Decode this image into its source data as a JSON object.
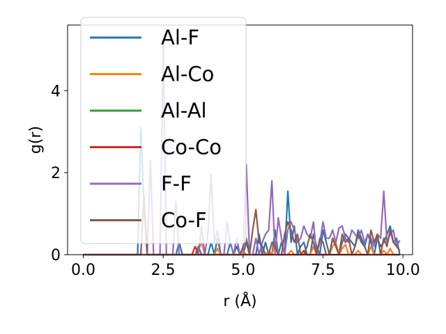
{
  "chart_data": {
    "type": "line",
    "title": "",
    "xlabel": "r (Å)",
    "ylabel": "g(r)",
    "xlim": [
      -0.49,
      10.3
    ],
    "ylim": [
      0,
      5.6
    ],
    "xticks": [
      0.0,
      2.5,
      5.0,
      7.5,
      10.0
    ],
    "xtick_labels": [
      "0.0",
      "2.5",
      "5.0",
      "7.5",
      "10.0"
    ],
    "yticks": [
      0,
      2,
      4
    ],
    "ytick_labels": [
      "0",
      "2",
      "4"
    ],
    "grid": false,
    "legend_position": "upper-left",
    "x": [
      0.0,
      0.1,
      0.2,
      0.3,
      0.4,
      0.5,
      0.6,
      0.7,
      0.8,
      0.9,
      1.0,
      1.1,
      1.2,
      1.3,
      1.4,
      1.5,
      1.6,
      1.7,
      1.8,
      1.9,
      2.0,
      2.1,
      2.2,
      2.3,
      2.4,
      2.5,
      2.6,
      2.7,
      2.8,
      2.9,
      3.0,
      3.1,
      3.2,
      3.3,
      3.4,
      3.5,
      3.6,
      3.7,
      3.8,
      3.9,
      4.0,
      4.1,
      4.2,
      4.3,
      4.4,
      4.5,
      4.6,
      4.7,
      4.8,
      4.9,
      5.0,
      5.1,
      5.2,
      5.3,
      5.4,
      5.5,
      5.6,
      5.7,
      5.8,
      5.9,
      6.0,
      6.1,
      6.2,
      6.3,
      6.4,
      6.5,
      6.6,
      6.7,
      6.8,
      6.9,
      7.0,
      7.1,
      7.2,
      7.3,
      7.4,
      7.5,
      7.6,
      7.7,
      7.8,
      7.9,
      8.0,
      8.1,
      8.2,
      8.3,
      8.4,
      8.5,
      8.6,
      8.7,
      8.8,
      8.9,
      9.0,
      9.1,
      9.2,
      9.3,
      9.4,
      9.5,
      9.6,
      9.7,
      9.8,
      9.9
    ],
    "series": [
      {
        "name": "Al-F",
        "color": "#1f77b4",
        "values": [
          0,
          0,
          0,
          0,
          0,
          0,
          0,
          0,
          0,
          0,
          0,
          0,
          0,
          0,
          0,
          0,
          0,
          0,
          3.1,
          1.2,
          0,
          0,
          0,
          0,
          0,
          0,
          0,
          0,
          0,
          0,
          0.3,
          0,
          0,
          0,
          0,
          0,
          0.2,
          0,
          0,
          0,
          0.3,
          0,
          0.4,
          0,
          0,
          0,
          0.3,
          0,
          0.2,
          0,
          0,
          0.3,
          0,
          0,
          0,
          0.5,
          0,
          0.3,
          0,
          0,
          0.6,
          0,
          0.3,
          0,
          1.55,
          0.3,
          0.7,
          0,
          0.2,
          0.3,
          0,
          0,
          0.5,
          0.2,
          0,
          0.6,
          0.3,
          0,
          0.4,
          0.2,
          0,
          0.3,
          0.5,
          0.4,
          0.3,
          0.2,
          0.6,
          0.4,
          0.2,
          0.5,
          0.3,
          0,
          0.4,
          0.2,
          0.3,
          0.5,
          0.7,
          0.3,
          0.4,
          0
        ]
      },
      {
        "name": "Al-Co",
        "color": "#ff7f0e",
        "values": [
          0,
          0,
          0,
          0,
          0,
          0,
          0,
          0,
          0,
          0,
          0,
          0,
          0,
          0,
          0,
          0,
          0,
          0,
          0,
          0,
          0,
          0,
          0,
          0,
          0,
          0,
          0,
          0,
          0,
          0,
          0,
          0,
          0,
          0,
          0,
          0,
          0.1,
          0.3,
          0,
          0,
          0,
          0,
          0.15,
          0,
          0,
          0,
          0,
          0,
          0,
          0,
          0.1,
          0,
          0,
          0,
          0,
          0,
          0,
          0,
          0.1,
          0,
          0.3,
          0,
          0,
          0,
          0,
          0.1,
          0,
          0,
          0,
          0,
          0,
          0,
          0.2,
          0,
          0,
          0,
          0,
          0,
          0.2,
          0.3,
          0,
          0.15,
          0.25,
          0,
          0,
          0,
          0.1,
          0,
          0,
          0,
          0.2,
          0,
          0,
          0,
          0.1,
          0,
          0.15,
          0,
          0,
          0
        ]
      },
      {
        "name": "Al-Al",
        "color": "#2ca02c",
        "values": [
          0,
          0,
          0,
          0,
          0,
          0,
          0,
          0,
          0,
          0,
          0,
          0,
          0,
          0,
          0,
          0,
          0,
          0,
          0,
          0,
          0,
          0,
          0,
          0,
          0,
          0,
          0,
          0,
          0,
          0,
          0,
          0,
          0,
          0,
          0,
          0,
          0,
          0,
          0,
          0,
          0,
          0,
          0,
          0,
          0,
          0,
          0,
          0,
          0,
          0,
          0,
          0,
          0,
          0,
          0,
          0,
          0,
          0,
          0,
          0,
          0,
          0,
          0,
          0,
          0,
          0,
          0,
          0,
          0,
          0,
          0,
          0,
          0,
          0,
          0,
          0,
          0,
          0,
          0,
          0,
          0,
          0,
          0,
          0,
          0,
          0,
          0,
          0,
          0,
          0,
          0,
          0,
          0,
          0,
          0,
          0,
          0,
          0,
          0,
          0
        ]
      },
      {
        "name": "Co-Co",
        "color": "#d62728",
        "values": [
          0,
          0,
          0,
          0,
          0,
          0,
          0,
          0,
          0,
          0,
          0,
          0,
          0,
          0,
          0,
          0,
          0,
          0,
          0,
          0,
          0,
          0,
          0,
          0,
          0,
          0,
          0,
          0,
          0,
          0,
          0,
          0,
          0,
          0,
          0,
          0.2,
          0,
          0,
          0,
          0,
          0,
          0,
          0,
          0,
          0,
          0,
          0,
          0,
          0,
          0,
          0,
          0,
          0,
          0,
          0,
          0,
          0,
          0,
          0,
          0,
          0,
          0,
          0,
          0,
          0,
          0,
          0,
          0,
          0,
          0.1,
          0,
          0,
          0,
          0,
          0,
          0,
          0,
          0,
          0,
          0,
          0,
          0,
          0,
          0,
          0,
          0,
          0,
          0,
          0,
          0,
          0,
          0,
          0,
          0,
          0,
          0,
          0,
          0,
          0,
          0
        ]
      },
      {
        "name": "F-F",
        "color": "#9467bd",
        "values": [
          0,
          0,
          0,
          0,
          0,
          0,
          0,
          0,
          0,
          0,
          0,
          0,
          0,
          0,
          0,
          0,
          0,
          0,
          0,
          0,
          0,
          2.3,
          0,
          0,
          0,
          5.2,
          0,
          0,
          0,
          1.3,
          0,
          0,
          0,
          0,
          0,
          0,
          0,
          0.7,
          0,
          0.5,
          1.95,
          0.3,
          0.6,
          0,
          0,
          0.8,
          0.3,
          0,
          0.4,
          0,
          0,
          2.2,
          0,
          0,
          0.4,
          0,
          0.3,
          0.5,
          0.6,
          1.8,
          0,
          0.9,
          0.4,
          0,
          0.6,
          0.8,
          0.6,
          0.3,
          0.4,
          0.7,
          0.5,
          0.4,
          0.8,
          0,
          0.3,
          0.8,
          0.4,
          0.4,
          0.6,
          0.3,
          0.65,
          0.7,
          0.4,
          0.3,
          0.6,
          0.5,
          0.4,
          0.6,
          0.3,
          0.5,
          0.4,
          0.2,
          0.5,
          0.4,
          1.55,
          0.3,
          0.5,
          0.6,
          0.2,
          0.35
        ]
      },
      {
        "name": "Co-F",
        "color": "#8c564b",
        "values": [
          0,
          0,
          0,
          0,
          0,
          0,
          0,
          0,
          0,
          0,
          0,
          0,
          0,
          0,
          0,
          0,
          0,
          0,
          0,
          1.45,
          0,
          0,
          0,
          0,
          0,
          0,
          0,
          0,
          0,
          0,
          0,
          0,
          0,
          0,
          0,
          0,
          0,
          0,
          0,
          0,
          0,
          0,
          0,
          0,
          0,
          0,
          0,
          0,
          0,
          0,
          0.2,
          0.4,
          0,
          0.6,
          1.1,
          0.3,
          0.2,
          0,
          0,
          0.3,
          0.2,
          0,
          0,
          0.5,
          0.8,
          0.6,
          0.3,
          0.5,
          0,
          0,
          0.2,
          0.5,
          0.3,
          0,
          0.4,
          0.3,
          0,
          0,
          0.4,
          0.2,
          0,
          0.5,
          0.3,
          0.4,
          0,
          0.2,
          0.5,
          0.3,
          0.2,
          0,
          0.6,
          0.3,
          0.5,
          0,
          0.4,
          0.2,
          0.6,
          0.3,
          0.2,
          0.1
        ]
      }
    ]
  }
}
